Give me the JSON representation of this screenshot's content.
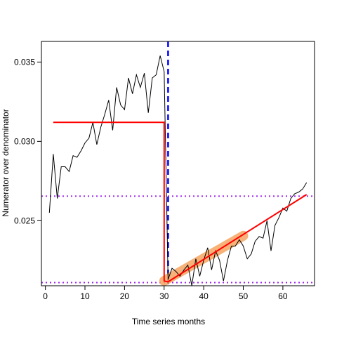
{
  "chart_data": {
    "type": "line",
    "title": "",
    "xlabel": "Time series months",
    "ylabel": "Numerator over denominator",
    "xlim": [
      -1,
      68
    ],
    "ylim": [
      0.0209,
      0.0363
    ],
    "x_ticks": [
      0,
      10,
      20,
      30,
      40,
      50,
      60
    ],
    "y_ticks": [
      0.025,
      0.03,
      0.035
    ],
    "y_tick_labels": [
      "0.025",
      "0.030",
      "0.035"
    ],
    "grid": false,
    "colors": {
      "observed": "#000000",
      "fitted": "#ff0000",
      "highlight": "#f4a460",
      "breakpoint": "#0000ff",
      "reference": "#a020f0"
    },
    "series": [
      {
        "style": "observed",
        "x": [
          1,
          2,
          3,
          4,
          5,
          6,
          7,
          8,
          9,
          10,
          11,
          12,
          13,
          14,
          15,
          16,
          17,
          18,
          19,
          20,
          21,
          22,
          23,
          24,
          25,
          26,
          27,
          28,
          29,
          30,
          31,
          32,
          33,
          34,
          35,
          36,
          37,
          38,
          39,
          40,
          41,
          42,
          43,
          44,
          45,
          46,
          47,
          48,
          49,
          50,
          51,
          52,
          53,
          54,
          55,
          56,
          57,
          58,
          59,
          60,
          61,
          62,
          63,
          64,
          65,
          66
        ],
        "values": [
          0.0255,
          0.0292,
          0.0264,
          0.0284,
          0.0284,
          0.0281,
          0.0291,
          0.029,
          0.0294,
          0.0299,
          0.0302,
          0.0312,
          0.0298,
          0.0309,
          0.0317,
          0.0326,
          0.0307,
          0.0334,
          0.0323,
          0.032,
          0.034,
          0.033,
          0.0342,
          0.0334,
          0.0343,
          0.0318,
          0.034,
          0.0342,
          0.0354,
          0.0344,
          0.0213,
          0.022,
          0.0218,
          0.0215,
          0.0219,
          0.0222,
          0.0209,
          0.0226,
          0.0215,
          0.0225,
          0.0233,
          0.0219,
          0.0231,
          0.0225,
          0.0212,
          0.0225,
          0.0234,
          0.0234,
          0.0238,
          0.0234,
          0.0226,
          0.0229,
          0.0237,
          0.024,
          0.0239,
          0.025,
          0.0231,
          0.0247,
          0.0252,
          0.0258,
          0.0256,
          0.0264,
          0.0267,
          0.0268,
          0.027,
          0.0274
        ]
      },
      {
        "style": "highlight",
        "x": [
          30,
          50
        ],
        "values": [
          0.0212,
          0.02405
        ]
      },
      {
        "style": "fitted",
        "x": [
          2,
          30,
          30,
          31,
          66
        ],
        "values": [
          0.0312,
          0.0312,
          0.0212,
          0.02115,
          0.02665
        ]
      }
    ],
    "breakpoint_x": 31,
    "reference_lines_y": [
      0.02655,
      0.0211
    ]
  }
}
